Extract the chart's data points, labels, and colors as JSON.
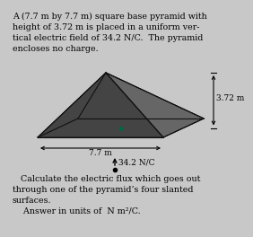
{
  "title_text": "A (7.7 m by 7.7 m) square base pyramid with\nheight of 3.72 m is placed in a uniform ver-\ntical electric field of 34.2 N/C.  The pyramid\nencloses no charge.",
  "bottom_text1": "   Calculate the electric flux which goes out\nthrough one of the pyramid’s four slanted\nsurfaces.",
  "bottom_text2": "    Answer in units of  N m²/C.",
  "label_height": "3.72 m",
  "label_width": "7.7 m",
  "label_field": "34.2 N/C",
  "bg_color": "#c8c8c8",
  "pyramid_outline_color": "#111111",
  "face_front_color": "#444444",
  "face_right_color": "#555555",
  "face_back_left_color": "#1a5c50",
  "face_back_right_color": "#1a5c50",
  "face_base_color": "#40d8d0",
  "font_size_title": 6.8,
  "font_size_labels": 6.5
}
